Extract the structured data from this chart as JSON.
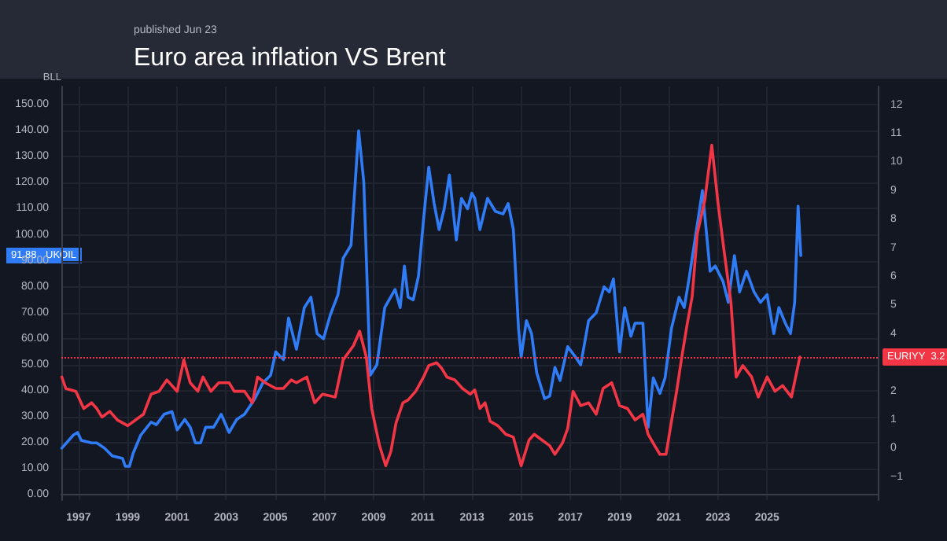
{
  "chart_data": {
    "type": "line",
    "title": "Euro area inflation VS Brent",
    "subtitle": "published Jun 23",
    "ylabel": "BLL",
    "xlim": [
      1996.3,
      2029.5
    ],
    "xticks": [
      1997,
      1999,
      2001,
      2003,
      2005,
      2007,
      2009,
      2011,
      2013,
      2015,
      2017,
      2019,
      2021,
      2023,
      2025
    ],
    "ylim": [
      -2,
      157
    ],
    "yticks": [
      {
        "value": 0,
        "label": "0.00"
      },
      {
        "value": 10,
        "label": "10.00"
      },
      {
        "value": 20,
        "label": "20.00"
      },
      {
        "value": 30,
        "label": "30.00"
      },
      {
        "value": 40,
        "label": "40.00"
      },
      {
        "value": 50,
        "label": "50.00"
      },
      {
        "value": 60,
        "label": "60.00"
      },
      {
        "value": 70,
        "label": "70.00"
      },
      {
        "value": 80,
        "label": "80.00"
      },
      {
        "value": 90,
        "label": "90.00"
      },
      {
        "value": 100,
        "label": "100.00"
      },
      {
        "value": 110,
        "label": "110.00"
      },
      {
        "value": 120,
        "label": "120.00"
      },
      {
        "value": 130,
        "label": "130.00"
      },
      {
        "value": 140,
        "label": "140.00"
      },
      {
        "value": 150,
        "label": "150.00"
      }
    ],
    "y2lim": [
      -1.8,
      12.65
    ],
    "y2ticks": [
      {
        "value": -1,
        "label": "−1"
      },
      0,
      1,
      2,
      4,
      5,
      6,
      7,
      8,
      9,
      10,
      11,
      12
    ],
    "grid": true,
    "legend": false,
    "marker": "none",
    "line_style": "solid",
    "annotations": [
      "91.88"
    ],
    "ref_lines": [
      {
        "axis": "y2",
        "value": 3.2,
        "label": "3.2",
        "color": "#f23645",
        "line_style": "dotted"
      }
    ],
    "series": [
      {
        "name": "UKOIL",
        "color": "#2f7cf6",
        "x": [
          1996.32,
          1996.79,
          1996.96,
          1997.11,
          1997.53,
          1997.74,
          1998.05,
          1998.37,
          1998.79,
          1998.9,
          1999.07,
          1999.22,
          1999.53,
          1999.95,
          2000.16,
          2000.48,
          2000.8,
          2001.01,
          2001.32,
          2001.54,
          2001.75,
          2001.96,
          2002.17,
          2002.49,
          2002.8,
          2003.12,
          2003.43,
          2003.75,
          2004.17,
          2004.49,
          2004.81,
          2005.02,
          2005.33,
          2005.54,
          2005.86,
          2006.18,
          2006.45,
          2006.7,
          2006.96,
          2007.23,
          2007.55,
          2007.76,
          2008.08,
          2008.39,
          2008.6,
          2008.86,
          2009.13,
          2009.45,
          2009.87,
          2010.08,
          2010.25,
          2010.4,
          2010.61,
          2010.82,
          2011.03,
          2011.24,
          2011.46,
          2011.66,
          2011.87,
          2012.08,
          2012.36,
          2012.57,
          2012.82,
          2012.99,
          2013.11,
          2013.32,
          2013.63,
          2013.95,
          2014.26,
          2014.47,
          2014.68,
          2014.89,
          2015.0,
          2015.21,
          2015.42,
          2015.63,
          2015.95,
          2016.16,
          2016.37,
          2016.58,
          2016.89,
          2017.21,
          2017.42,
          2017.74,
          2018.05,
          2018.37,
          2018.58,
          2018.75,
          2019.0,
          2019.21,
          2019.46,
          2019.63,
          2019.95,
          2020.16,
          2020.37,
          2020.64,
          2020.85,
          2021.11,
          2021.42,
          2021.63,
          2021.84,
          2022.16,
          2022.37,
          2022.68,
          2022.89,
          2023.21,
          2023.42,
          2023.67,
          2023.88,
          2024.16,
          2024.47,
          2024.73,
          2025.0,
          2025.27,
          2025.48,
          2025.74,
          2025.95,
          2026.12,
          2026.26,
          2026.37
        ],
        "values": [
          18,
          23,
          24,
          21,
          20,
          20,
          18,
          15,
          14,
          11,
          11,
          16,
          23,
          28,
          27,
          31,
          32,
          25,
          29,
          26,
          20,
          20,
          26,
          26,
          31,
          24,
          29,
          31,
          37,
          43,
          46,
          55,
          52,
          68,
          56,
          72,
          76,
          62,
          60,
          69,
          77,
          91,
          96,
          140,
          120,
          46,
          50,
          72,
          79,
          72,
          88,
          76,
          75,
          84,
          106,
          126,
          112,
          102,
          110,
          123,
          98,
          114,
          110,
          116,
          114,
          102,
          114,
          109,
          108,
          112,
          102,
          64,
          53,
          67,
          62,
          47,
          37,
          38,
          49,
          44,
          57,
          53,
          50,
          67,
          70,
          80,
          78,
          83,
          55,
          72,
          61,
          66,
          66,
          26,
          45,
          39,
          45,
          64,
          76,
          72,
          84,
          104,
          117,
          86,
          88,
          82,
          74,
          92,
          78,
          86,
          78,
          74,
          77,
          62,
          72,
          66,
          62,
          74,
          111,
          92
        ]
      },
      {
        "name": "EURIYY",
        "color": "#f23645",
        "axis": "y2",
        "x": [
          1996.32,
          1996.48,
          1996.89,
          1997.21,
          1997.53,
          1997.74,
          1997.95,
          1998.27,
          1998.58,
          1999.0,
          1999.32,
          1999.64,
          1999.95,
          2000.27,
          2000.59,
          2001.01,
          2001.28,
          2001.54,
          2001.85,
          2002.06,
          2002.38,
          2002.7,
          2003.12,
          2003.33,
          2003.75,
          2004.07,
          2004.28,
          2004.59,
          2005.02,
          2005.33,
          2005.65,
          2005.86,
          2006.28,
          2006.6,
          2006.92,
          2007.44,
          2007.76,
          2008.18,
          2008.43,
          2008.7,
          2008.92,
          2009.24,
          2009.49,
          2009.7,
          2009.91,
          2010.19,
          2010.4,
          2010.71,
          2011.03,
          2011.24,
          2011.56,
          2011.77,
          2011.98,
          2012.3,
          2012.61,
          2012.93,
          2013.11,
          2013.32,
          2013.53,
          2013.74,
          2014.05,
          2014.37,
          2014.68,
          2015.0,
          2015.32,
          2015.53,
          2015.84,
          2016.16,
          2016.37,
          2016.68,
          2016.89,
          2017.11,
          2017.42,
          2017.74,
          2018.05,
          2018.33,
          2018.68,
          2019.0,
          2019.32,
          2019.63,
          2019.95,
          2020.16,
          2020.43,
          2020.64,
          2020.89,
          2021.11,
          2021.32,
          2021.53,
          2021.74,
          2021.95,
          2022.16,
          2022.47,
          2022.75,
          2023.0,
          2023.25,
          2023.53,
          2023.74,
          2024.01,
          2024.37,
          2024.64,
          2025.0,
          2025.32,
          2025.63,
          2025.99,
          2026.33
        ],
        "values": [
          2.5,
          2.1,
          2.0,
          1.4,
          1.6,
          1.4,
          1.1,
          1.3,
          1.0,
          0.8,
          1.0,
          1.2,
          1.9,
          2.0,
          2.4,
          2.0,
          3.1,
          2.3,
          2.0,
          2.5,
          2.0,
          2.3,
          2.3,
          2.0,
          2.0,
          1.6,
          2.5,
          2.3,
          2.1,
          2.1,
          2.4,
          2.3,
          2.5,
          1.6,
          1.9,
          1.8,
          3.1,
          3.6,
          4.1,
          3.2,
          1.4,
          0.1,
          -0.6,
          -0.1,
          0.9,
          1.6,
          1.7,
          2.0,
          2.5,
          2.9,
          3.0,
          2.8,
          2.5,
          2.4,
          2.1,
          1.9,
          2.05,
          1.4,
          1.6,
          0.95,
          0.8,
          0.5,
          0.4,
          -0.6,
          0.3,
          0.5,
          0.3,
          0.1,
          -0.2,
          0.2,
          0.7,
          2.0,
          1.5,
          1.6,
          1.2,
          2.1,
          2.3,
          1.5,
          1.4,
          1.0,
          1.2,
          0.5,
          0.1,
          -0.2,
          -0.2,
          0.95,
          2.0,
          3.2,
          4.3,
          5.3,
          7.5,
          8.7,
          10.6,
          8.6,
          6.9,
          5.1,
          2.5,
          2.9,
          2.5,
          1.8,
          2.5,
          2.0,
          2.2,
          1.8,
          3.2
        ]
      }
    ]
  }
}
